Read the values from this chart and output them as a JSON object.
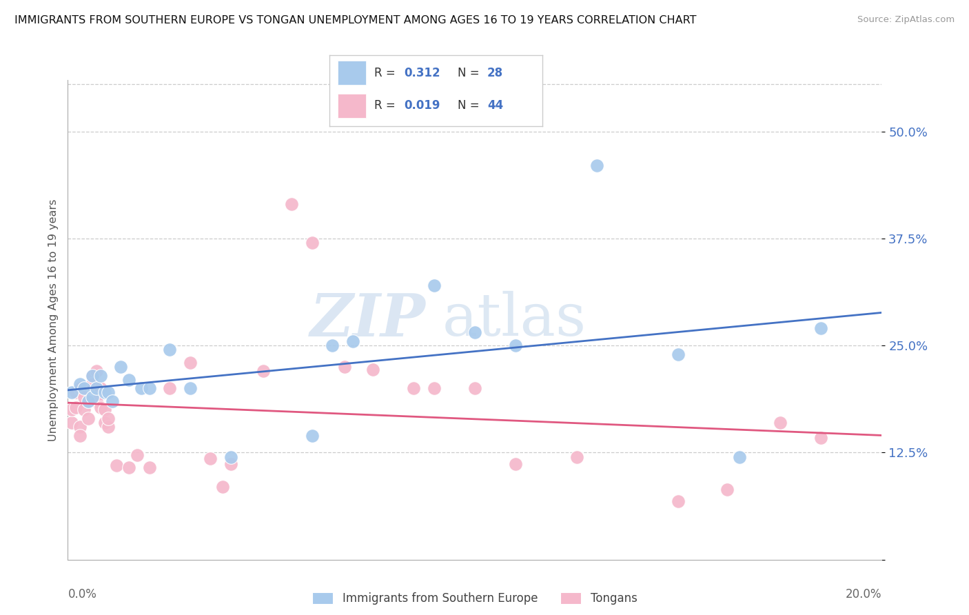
{
  "title": "IMMIGRANTS FROM SOUTHERN EUROPE VS TONGAN UNEMPLOYMENT AMONG AGES 16 TO 19 YEARS CORRELATION CHART",
  "source": "Source: ZipAtlas.com",
  "ylabel": "Unemployment Among Ages 16 to 19 years",
  "xlim": [
    0.0,
    0.2
  ],
  "ylim": [
    0.0,
    0.56
  ],
  "ytick_vals": [
    0.0,
    0.125,
    0.25,
    0.375,
    0.5
  ],
  "ytick_labels": [
    "",
    "12.5%",
    "25.0%",
    "37.5%",
    "50.0%"
  ],
  "blue_label": "Immigrants from Southern Europe",
  "pink_label": "Tongans",
  "blue_R": "0.312",
  "blue_N": "28",
  "pink_R": "0.019",
  "pink_N": "44",
  "blue_dot_color": "#a8caec",
  "pink_dot_color": "#f5b8cb",
  "blue_line_color": "#4472c4",
  "pink_line_color": "#e05880",
  "legend_text_color": "#4472c4",
  "watermark_zip_color": "#ccdcee",
  "watermark_atlas_color": "#ccdcee",
  "blue_x": [
    0.001,
    0.003,
    0.004,
    0.005,
    0.006,
    0.006,
    0.007,
    0.008,
    0.009,
    0.01,
    0.011,
    0.013,
    0.015,
    0.018,
    0.02,
    0.025,
    0.03,
    0.04,
    0.06,
    0.065,
    0.07,
    0.09,
    0.1,
    0.11,
    0.13,
    0.15,
    0.165,
    0.185
  ],
  "blue_y": [
    0.195,
    0.205,
    0.2,
    0.185,
    0.215,
    0.19,
    0.2,
    0.215,
    0.195,
    0.195,
    0.185,
    0.225,
    0.21,
    0.2,
    0.2,
    0.245,
    0.2,
    0.12,
    0.145,
    0.25,
    0.255,
    0.32,
    0.265,
    0.25,
    0.46,
    0.24,
    0.12,
    0.27
  ],
  "pink_x": [
    0.001,
    0.001,
    0.002,
    0.002,
    0.003,
    0.003,
    0.003,
    0.004,
    0.004,
    0.005,
    0.005,
    0.006,
    0.006,
    0.007,
    0.007,
    0.008,
    0.008,
    0.009,
    0.009,
    0.01,
    0.01,
    0.012,
    0.015,
    0.017,
    0.02,
    0.025,
    0.03,
    0.035,
    0.038,
    0.04,
    0.048,
    0.055,
    0.06,
    0.068,
    0.075,
    0.085,
    0.09,
    0.1,
    0.11,
    0.125,
    0.15,
    0.162,
    0.175,
    0.185
  ],
  "pink_y": [
    0.16,
    0.175,
    0.195,
    0.178,
    0.155,
    0.145,
    0.2,
    0.19,
    0.175,
    0.165,
    0.185,
    0.215,
    0.205,
    0.22,
    0.185,
    0.2,
    0.178,
    0.175,
    0.16,
    0.155,
    0.165,
    0.11,
    0.108,
    0.122,
    0.108,
    0.2,
    0.23,
    0.118,
    0.085,
    0.112,
    0.22,
    0.415,
    0.37,
    0.225,
    0.222,
    0.2,
    0.2,
    0.2,
    0.112,
    0.12,
    0.068,
    0.082,
    0.16,
    0.142
  ]
}
